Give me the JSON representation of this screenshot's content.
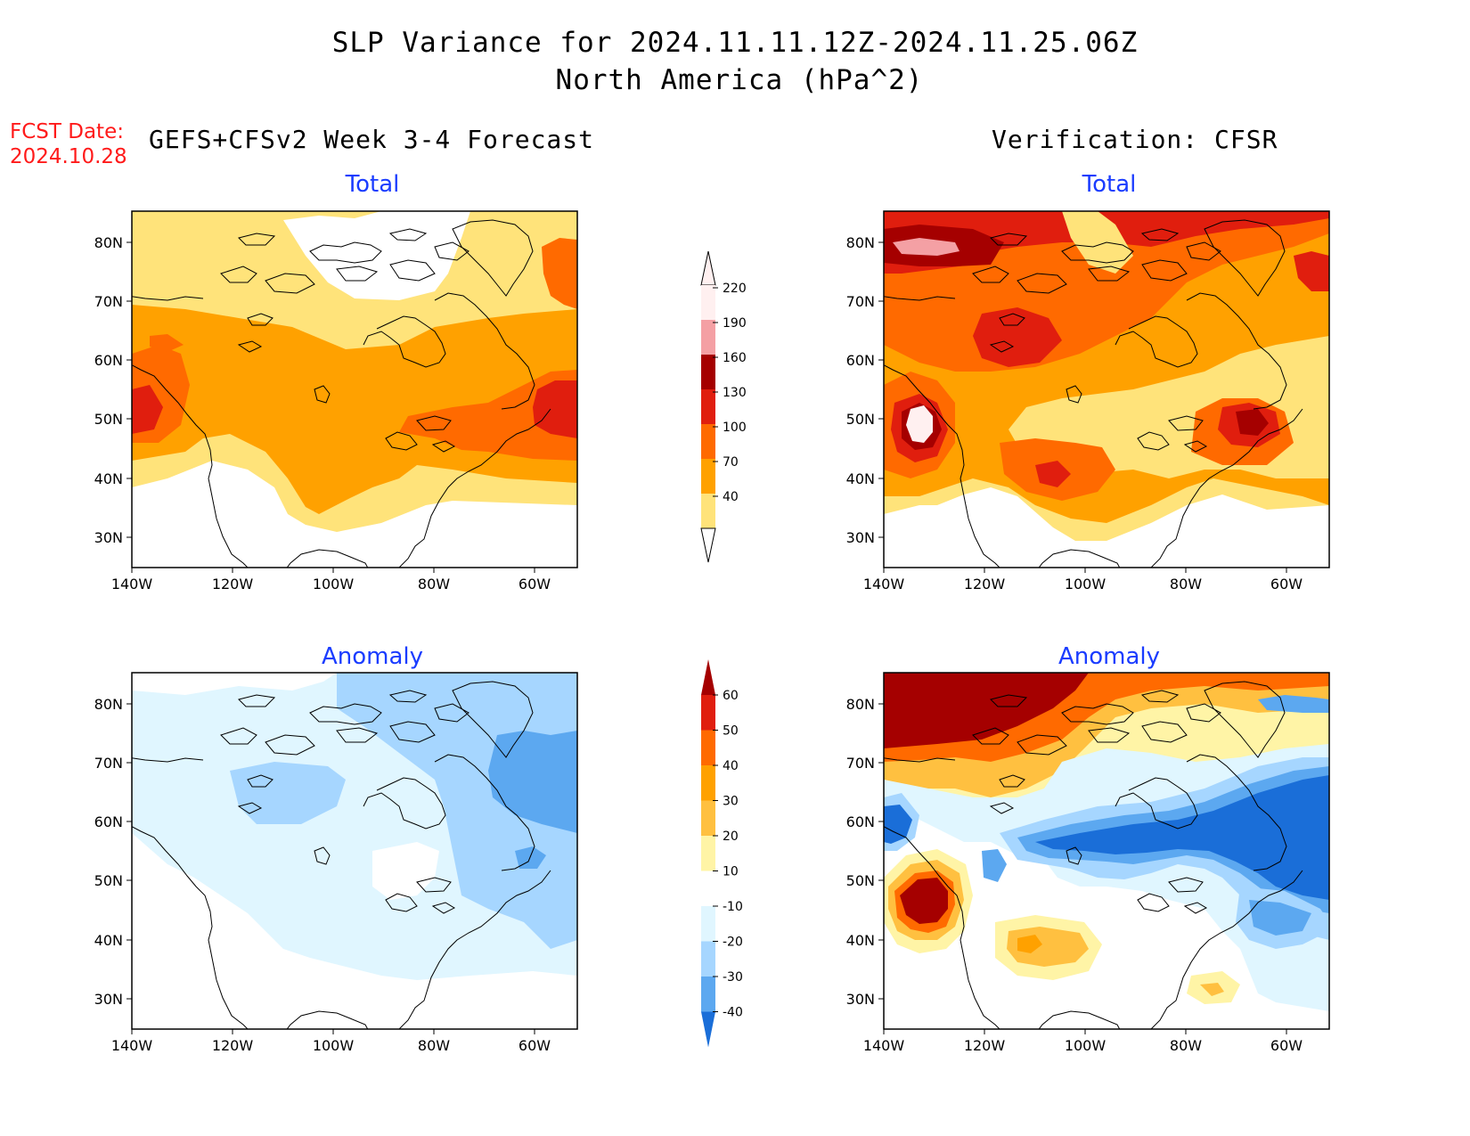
{
  "header": {
    "title": "SLP Variance for 2024.11.11.12Z-2024.11.25.06Z",
    "subtitle": "North America (hPa^2)"
  },
  "fcst": {
    "label": "FCST Date:",
    "date": "2024.10.28"
  },
  "left_column": {
    "heading": "GEFS+CFSv2 Week 3-4 Forecast"
  },
  "right_column": {
    "heading": "Verification: CFSR"
  },
  "panels": {
    "fc_total": {
      "title": "Total"
    },
    "vf_total": {
      "title": "Total"
    },
    "fc_anom": {
      "title": "Anomaly"
    },
    "vf_anom": {
      "title": "Anomaly"
    }
  },
  "axes": {
    "lat_labels": [
      "80N",
      "70N",
      "60N",
      "50N",
      "40N",
      "30N"
    ],
    "lon_labels": [
      "140W",
      "120W",
      "100W",
      "80W",
      "60W"
    ]
  },
  "colorbars": {
    "total": {
      "labels": [
        "220",
        "190",
        "160",
        "130",
        "100",
        "70",
        "40"
      ],
      "colors": [
        "#fff0f0",
        "#f4a0a4",
        "#a50000",
        "#e01e0e",
        "#ff6a00",
        "#ffa100",
        "#ffe37a"
      ]
    },
    "anomaly": {
      "labels": [
        "60",
        "50",
        "40",
        "30",
        "20",
        "10",
        "-10",
        "-20",
        "-30",
        "-40"
      ],
      "colors": [
        "#a50000",
        "#e01e0e",
        "#ff6a00",
        "#ffa100",
        "#ffc040",
        "#fff4a6",
        "#ffffff",
        "#e0f6ff",
        "#a6d6ff",
        "#5ca8f0",
        "#1a6ed8"
      ]
    }
  },
  "colors": {
    "fcst": "#ff1a1a",
    "panel_title": "#1a3cff"
  }
}
